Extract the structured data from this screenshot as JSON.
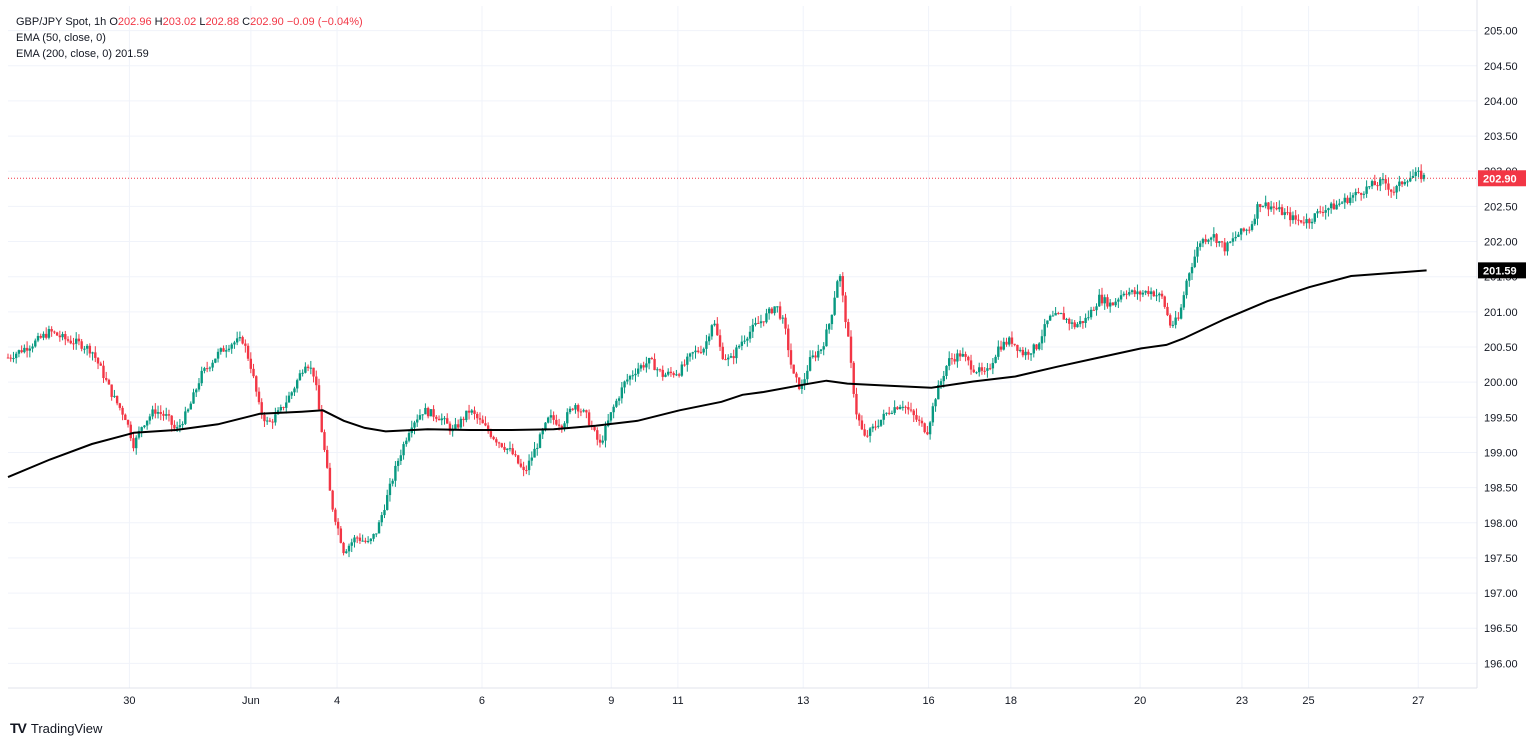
{
  "legend": {
    "symbol": "GBP/JPY Spot, 1h",
    "o_label": "O",
    "o": "202.96",
    "h_label": "H",
    "h": "203.02",
    "l_label": "L",
    "l": "202.88",
    "c_label": "C",
    "c": "202.90",
    "change": "−0.09 (−0.04%)",
    "ema50": "EMA (50, close, 0)",
    "ema200": "EMA (200, close, 0)",
    "ema200_value": "201.59"
  },
  "brand": {
    "name": "TradingView",
    "logo": "TV"
  },
  "colors": {
    "up": "#089981",
    "down": "#f23645",
    "ema": "#000000",
    "price_line": "#f23645",
    "grid": "#f0f3fa"
  },
  "chart_data": {
    "type": "candlestick",
    "title": "GBP/JPY Spot, 1h",
    "ylim": [
      195.65,
      205.35
    ],
    "y_ticks": [
      "196.00",
      "196.50",
      "197.00",
      "197.50",
      "198.00",
      "198.50",
      "199.00",
      "199.50",
      "200.00",
      "200.50",
      "201.00",
      "201.50",
      "202.00",
      "202.50",
      "203.00",
      "203.50",
      "204.00",
      "204.50",
      "205.00"
    ],
    "x_ticks": [
      "30",
      "Jun",
      "4",
      "6",
      "9",
      "11",
      "13",
      "16",
      "18",
      "20",
      "23",
      "25",
      "27"
    ],
    "last_price": "202.90",
    "ema200_label": "201.59",
    "price_path": [
      [
        0,
        200.35
      ],
      [
        0.6,
        200.55
      ],
      [
        1.0,
        200.72
      ],
      [
        1.4,
        200.6
      ],
      [
        1.7,
        200.55
      ],
      [
        2.0,
        200.45
      ],
      [
        2.2,
        200.2
      ],
      [
        2.5,
        199.8
      ],
      [
        2.8,
        199.5
      ],
      [
        3.0,
        199.1
      ],
      [
        3.2,
        199.4
      ],
      [
        3.5,
        199.6
      ],
      [
        3.8,
        199.5
      ],
      [
        4.0,
        199.3
      ],
      [
        4.3,
        199.6
      ],
      [
        4.6,
        200.1
      ],
      [
        5.0,
        200.4
      ],
      [
        5.3,
        200.55
      ],
      [
        5.6,
        200.6
      ],
      [
        5.8,
        200.2
      ],
      [
        6.0,
        199.6
      ],
      [
        6.2,
        199.4
      ],
      [
        6.5,
        199.6
      ],
      [
        6.8,
        199.9
      ],
      [
        7.1,
        200.3
      ],
      [
        7.3,
        200.1
      ],
      [
        7.5,
        199.2
      ],
      [
        7.7,
        198.3
      ],
      [
        8.0,
        197.6
      ],
      [
        8.3,
        197.8
      ],
      [
        8.6,
        197.7
      ],
      [
        8.8,
        197.9
      ],
      [
        9.0,
        198.3
      ],
      [
        9.3,
        198.9
      ],
      [
        9.6,
        199.4
      ],
      [
        9.9,
        199.6
      ],
      [
        10.3,
        199.5
      ],
      [
        10.6,
        199.3
      ],
      [
        11.0,
        199.6
      ],
      [
        11.3,
        199.4
      ],
      [
        11.6,
        199.2
      ],
      [
        12.0,
        199.0
      ],
      [
        12.3,
        198.7
      ],
      [
        12.6,
        199.1
      ],
      [
        12.9,
        199.5
      ],
      [
        13.2,
        199.4
      ],
      [
        13.5,
        199.7
      ],
      [
        13.8,
        199.5
      ],
      [
        14.1,
        199.1
      ],
      [
        14.4,
        199.6
      ],
      [
        14.7,
        200.0
      ],
      [
        15.0,
        200.2
      ],
      [
        15.3,
        200.3
      ],
      [
        15.6,
        200.1
      ],
      [
        16.0,
        200.15
      ],
      [
        16.3,
        200.4
      ],
      [
        16.6,
        200.5
      ],
      [
        16.8,
        200.9
      ],
      [
        17.0,
        200.4
      ],
      [
        17.2,
        200.3
      ],
      [
        17.5,
        200.6
      ],
      [
        17.8,
        200.8
      ],
      [
        18.0,
        200.9
      ],
      [
        18.3,
        201.1
      ],
      [
        18.5,
        200.8
      ],
      [
        18.7,
        200.1
      ],
      [
        18.9,
        199.9
      ],
      [
        19.1,
        200.3
      ],
      [
        19.4,
        200.5
      ],
      [
        19.6,
        200.9
      ],
      [
        19.8,
        201.6
      ],
      [
        20.0,
        200.7
      ],
      [
        20.2,
        199.6
      ],
      [
        20.4,
        199.2
      ],
      [
        20.7,
        199.4
      ],
      [
        21.0,
        199.6
      ],
      [
        21.3,
        199.7
      ],
      [
        21.6,
        199.5
      ],
      [
        21.9,
        199.3
      ],
      [
        22.1,
        199.8
      ],
      [
        22.4,
        200.3
      ],
      [
        22.7,
        200.4
      ],
      [
        23.0,
        200.2
      ],
      [
        23.3,
        200.1
      ],
      [
        23.6,
        200.5
      ],
      [
        23.9,
        200.6
      ],
      [
        24.2,
        200.4
      ],
      [
        24.5,
        200.5
      ],
      [
        24.8,
        200.9
      ],
      [
        25.1,
        200.95
      ],
      [
        25.4,
        200.8
      ],
      [
        25.7,
        200.9
      ],
      [
        26.0,
        201.2
      ],
      [
        26.3,
        201.1
      ],
      [
        26.6,
        201.3
      ],
      [
        26.9,
        201.25
      ],
      [
        27.2,
        201.3
      ],
      [
        27.5,
        201.2
      ],
      [
        27.7,
        200.8
      ],
      [
        27.9,
        200.9
      ],
      [
        28.1,
        201.5
      ],
      [
        28.4,
        202.0
      ],
      [
        28.7,
        202.1
      ],
      [
        29.0,
        201.9
      ],
      [
        29.3,
        202.1
      ],
      [
        29.6,
        202.2
      ],
      [
        29.8,
        202.55
      ],
      [
        30.1,
        202.5
      ],
      [
        30.4,
        202.4
      ],
      [
        30.7,
        202.3
      ],
      [
        31.0,
        202.3
      ],
      [
        31.3,
        202.45
      ],
      [
        31.6,
        202.5
      ],
      [
        31.9,
        202.6
      ],
      [
        32.2,
        202.7
      ],
      [
        32.5,
        202.8
      ],
      [
        32.8,
        202.85
      ],
      [
        33.0,
        202.7
      ],
      [
        33.3,
        202.9
      ],
      [
        33.6,
        202.95
      ],
      [
        33.8,
        202.9
      ]
    ],
    "ema200_path": [
      [
        0,
        198.65
      ],
      [
        1.0,
        198.9
      ],
      [
        2.0,
        199.12
      ],
      [
        3.0,
        199.28
      ],
      [
        4.0,
        199.32
      ],
      [
        5.0,
        199.4
      ],
      [
        6.0,
        199.55
      ],
      [
        7.0,
        199.58
      ],
      [
        7.5,
        199.6
      ],
      [
        8.0,
        199.45
      ],
      [
        8.5,
        199.35
      ],
      [
        9.0,
        199.3
      ],
      [
        10.0,
        199.33
      ],
      [
        11.0,
        199.32
      ],
      [
        12.0,
        199.32
      ],
      [
        13.0,
        199.33
      ],
      [
        14.0,
        199.38
      ],
      [
        15.0,
        199.45
      ],
      [
        16.0,
        199.6
      ],
      [
        17.0,
        199.72
      ],
      [
        17.5,
        199.82
      ],
      [
        18.0,
        199.86
      ],
      [
        19.0,
        199.97
      ],
      [
        19.5,
        200.02
      ],
      [
        20.0,
        199.98
      ],
      [
        21.0,
        199.95
      ],
      [
        22.0,
        199.92
      ],
      [
        23.0,
        200.01
      ],
      [
        24.0,
        200.08
      ],
      [
        25.0,
        200.22
      ],
      [
        26.0,
        200.35
      ],
      [
        27.0,
        200.48
      ],
      [
        27.6,
        200.53
      ],
      [
        28.0,
        200.62
      ],
      [
        29.0,
        200.9
      ],
      [
        30.0,
        201.15
      ],
      [
        31.0,
        201.35
      ],
      [
        32.0,
        201.51
      ],
      [
        33.8,
        201.59
      ]
    ]
  }
}
